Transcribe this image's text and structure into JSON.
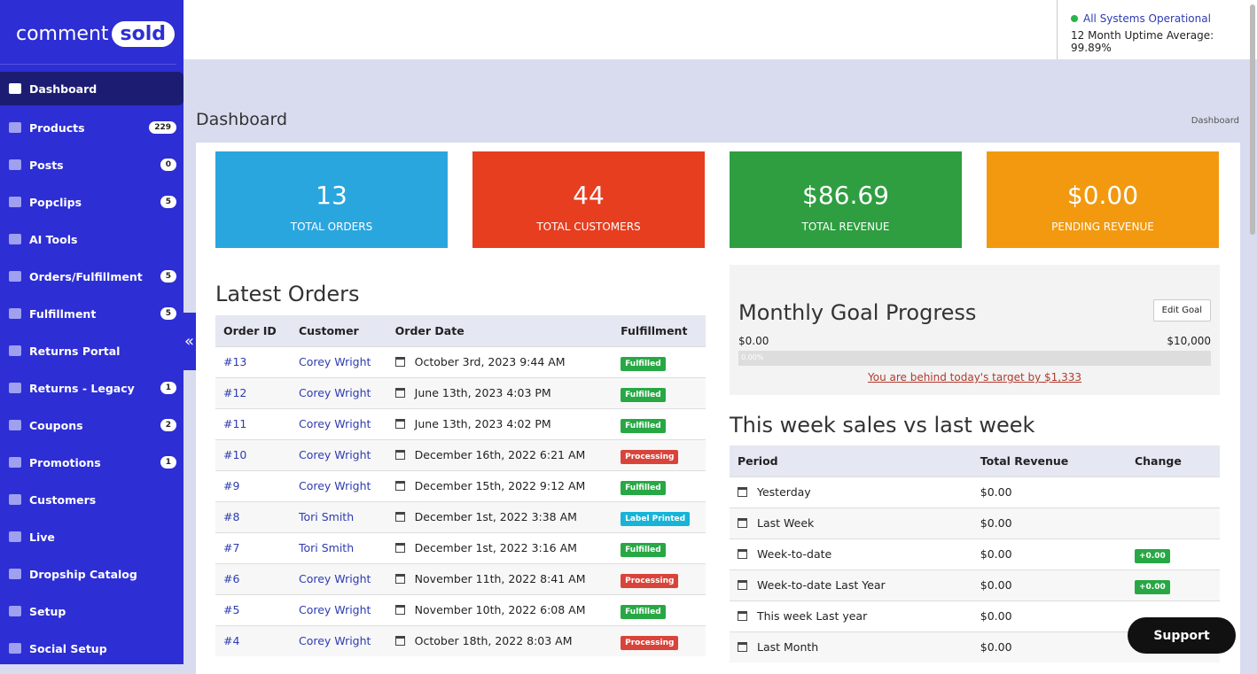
{
  "brand": {
    "left": "comment",
    "right": "sold"
  },
  "status": {
    "text": "All Systems Operational",
    "uptime": "12 Month Uptime Average: 99.89%"
  },
  "nav": [
    {
      "label": "Dashboard"
    },
    {
      "label": "Products",
      "badge": "229"
    },
    {
      "label": "Posts",
      "badge": "0"
    },
    {
      "label": "Popclips",
      "badge": "5"
    },
    {
      "label": "AI Tools"
    },
    {
      "label": "Orders/Fulfillment",
      "badge": "5"
    },
    {
      "label": "Fulfillment",
      "badge": "5"
    },
    {
      "label": "Returns Portal"
    },
    {
      "label": "Returns - Legacy",
      "badge": "1"
    },
    {
      "label": "Coupons",
      "badge": "2"
    },
    {
      "label": "Promotions",
      "badge": "1"
    },
    {
      "label": "Customers"
    },
    {
      "label": "Live"
    },
    {
      "label": "Dropship Catalog"
    },
    {
      "label": "Setup"
    },
    {
      "label": "Social Setup"
    }
  ],
  "page": {
    "title": "Dashboard",
    "breadcrumb": "Dashboard"
  },
  "stats": [
    {
      "value": "13",
      "label": "TOTAL ORDERS",
      "color": "#2aa6df"
    },
    {
      "value": "44",
      "label": "TOTAL CUSTOMERS",
      "color": "#e63e1f"
    },
    {
      "value": "$86.69",
      "label": "TOTAL REVENUE",
      "color": "#2e9e40"
    },
    {
      "value": "$0.00",
      "label": "PENDING REVENUE",
      "color": "#f2990f"
    }
  ],
  "orders": {
    "title": "Latest Orders",
    "headers": [
      "Order ID",
      "Customer",
      "Order Date",
      "Fulfillment"
    ],
    "rows": [
      {
        "id": "#13",
        "customer": "Corey Wright",
        "date": "October 3rd, 2023 9:44 AM",
        "status": "Fulfilled",
        "status_color": "#27a844"
      },
      {
        "id": "#12",
        "customer": "Corey Wright",
        "date": "June 13th, 2023 4:03 PM",
        "status": "Fulfilled",
        "status_color": "#27a844"
      },
      {
        "id": "#11",
        "customer": "Corey Wright",
        "date": "June 13th, 2023 4:02 PM",
        "status": "Fulfilled",
        "status_color": "#27a844"
      },
      {
        "id": "#10",
        "customer": "Corey Wright",
        "date": "December 16th, 2022 6:21 AM",
        "status": "Processing",
        "status_color": "#d9443a"
      },
      {
        "id": "#9",
        "customer": "Corey Wright",
        "date": "December 15th, 2022 9:12 AM",
        "status": "Fulfilled",
        "status_color": "#27a844"
      },
      {
        "id": "#8",
        "customer": "Tori Smith",
        "date": "December 1st, 2022 3:38 AM",
        "status": "Label Printed",
        "status_color": "#17b4d8"
      },
      {
        "id": "#7",
        "customer": "Tori Smith",
        "date": "December 1st, 2022 3:16 AM",
        "status": "Fulfilled",
        "status_color": "#27a844"
      },
      {
        "id": "#6",
        "customer": "Corey Wright",
        "date": "November 11th, 2022 8:41 AM",
        "status": "Processing",
        "status_color": "#d9443a"
      },
      {
        "id": "#5",
        "customer": "Corey Wright",
        "date": "November 10th, 2022 6:08 AM",
        "status": "Fulfilled",
        "status_color": "#27a844"
      },
      {
        "id": "#4",
        "customer": "Corey Wright",
        "date": "October 18th, 2022 8:03 AM",
        "status": "Processing",
        "status_color": "#d9443a"
      }
    ]
  },
  "goal": {
    "title": "Monthly Goal Progress",
    "button": "Edit Goal",
    "min": "$0.00",
    "max": "$10,000",
    "percent": "0.00%",
    "message": "You are behind today's target by $1,333"
  },
  "week": {
    "title": "This week sales vs last week",
    "headers": [
      "Period",
      "Total Revenue",
      "Change"
    ],
    "rows": [
      {
        "period": "Yesterday",
        "revenue": "$0.00"
      },
      {
        "period": "Last Week",
        "revenue": "$0.00"
      },
      {
        "period": "Week-to-date",
        "revenue": "$0.00",
        "change": "+0.00"
      },
      {
        "period": "Week-to-date Last Year",
        "revenue": "$0.00",
        "change": "+0.00"
      },
      {
        "period": "This week Last year",
        "revenue": "$0.00"
      },
      {
        "period": "Last Month",
        "revenue": "$0.00"
      }
    ]
  },
  "support": "Support"
}
